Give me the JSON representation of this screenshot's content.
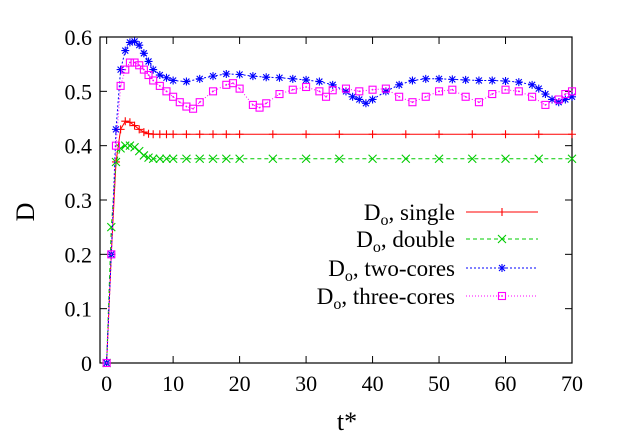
{
  "chart_data": {
    "type": "line",
    "title": "",
    "xlabel": "t*",
    "ylabel": "D",
    "xlim": [
      -1,
      70
    ],
    "ylim": [
      0,
      0.6
    ],
    "x_ticks": [
      0,
      10,
      20,
      30,
      40,
      50,
      60,
      70
    ],
    "y_ticks": [
      0,
      0.1,
      0.2,
      0.3,
      0.4,
      0.5,
      0.6
    ],
    "x_tick_labels": [
      "0",
      "10",
      "20",
      "30",
      "40",
      "50",
      "60",
      "70"
    ],
    "y_tick_labels": [
      "0",
      "0.1",
      "0.2",
      "0.3",
      "0.4",
      "0.5",
      "0.6"
    ],
    "grid": false,
    "legend_position": "center-right",
    "series": [
      {
        "name": "single",
        "legend_main": "D",
        "legend_sub": "o",
        "legend_rest": ", single",
        "color": "#ff0000",
        "marker": "plus",
        "dash": "",
        "x": [
          0,
          0.7,
          1.4,
          2.1,
          2.8,
          3.5,
          4.2,
          4.9,
          5.6,
          6.3,
          7,
          8,
          9,
          10,
          12,
          14,
          16,
          18,
          20,
          25,
          30,
          35,
          40,
          45,
          50,
          55,
          60,
          65,
          70
        ],
        "y": [
          0,
          0.2,
          0.37,
          0.43,
          0.445,
          0.443,
          0.437,
          0.43,
          0.425,
          0.422,
          0.421,
          0.421,
          0.421,
          0.421,
          0.421,
          0.421,
          0.421,
          0.421,
          0.421,
          0.421,
          0.421,
          0.421,
          0.421,
          0.421,
          0.421,
          0.421,
          0.421,
          0.421,
          0.421
        ]
      },
      {
        "name": "double",
        "legend_main": "D",
        "legend_sub": "o",
        "legend_rest": ", double",
        "color": "#00cc00",
        "marker": "x",
        "dash": "4,3",
        "x": [
          0,
          0.7,
          1.4,
          2.1,
          2.8,
          3.5,
          4.2,
          4.9,
          5.6,
          6.3,
          7,
          8,
          9,
          10,
          12,
          14,
          16,
          18,
          20,
          25,
          30,
          35,
          40,
          45,
          50,
          55,
          60,
          65,
          70
        ],
        "y": [
          0,
          0.25,
          0.37,
          0.395,
          0.4,
          0.4,
          0.397,
          0.39,
          0.382,
          0.378,
          0.376,
          0.376,
          0.376,
          0.376,
          0.376,
          0.376,
          0.376,
          0.376,
          0.376,
          0.376,
          0.376,
          0.376,
          0.376,
          0.376,
          0.376,
          0.376,
          0.376,
          0.376,
          0.376
        ]
      },
      {
        "name": "two-cores",
        "legend_main": "D",
        "legend_sub": "o",
        "legend_rest": ", two-cores",
        "color": "#0000ff",
        "marker": "star",
        "dash": "2,2",
        "x": [
          0,
          0.7,
          1.4,
          2.1,
          2.8,
          3.5,
          4.2,
          4.9,
          5.6,
          6.3,
          7,
          8,
          9,
          10,
          12,
          14,
          16,
          18,
          20,
          22,
          24,
          26,
          28,
          30,
          32,
          34,
          36,
          37,
          38,
          39,
          40,
          42,
          44,
          46,
          48,
          50,
          52,
          54,
          56,
          58,
          60,
          62,
          64,
          65,
          66,
          67,
          68,
          69,
          70
        ],
        "y": [
          0,
          0.2,
          0.43,
          0.54,
          0.575,
          0.59,
          0.592,
          0.585,
          0.57,
          0.555,
          0.54,
          0.53,
          0.525,
          0.52,
          0.518,
          0.523,
          0.528,
          0.532,
          0.531,
          0.528,
          0.526,
          0.525,
          0.523,
          0.521,
          0.518,
          0.512,
          0.5,
          0.49,
          0.485,
          0.478,
          0.485,
          0.5,
          0.512,
          0.52,
          0.523,
          0.523,
          0.522,
          0.521,
          0.52,
          0.52,
          0.519,
          0.517,
          0.512,
          0.505,
          0.495,
          0.485,
          0.48,
          0.485,
          0.49
        ]
      },
      {
        "name": "three-cores",
        "legend_main": "D",
        "legend_sub": "o",
        "legend_rest": ", three-cores",
        "color": "#ff00ff",
        "marker": "square",
        "dash": "1,2",
        "x": [
          0,
          0.7,
          1.4,
          2.1,
          2.8,
          3.5,
          4.2,
          4.9,
          5.6,
          6.3,
          7,
          8,
          9,
          10,
          11,
          12,
          13,
          14,
          16,
          18,
          19,
          20,
          22,
          23,
          24,
          26,
          28,
          30,
          32,
          33,
          34,
          36,
          38,
          40,
          42,
          44,
          46,
          48,
          50,
          52,
          54,
          56,
          58,
          60,
          62,
          64,
          66,
          68,
          69,
          70
        ],
        "y": [
          0,
          0.2,
          0.4,
          0.51,
          0.54,
          0.553,
          0.553,
          0.548,
          0.54,
          0.53,
          0.52,
          0.51,
          0.5,
          0.49,
          0.48,
          0.472,
          0.468,
          0.48,
          0.5,
          0.512,
          0.515,
          0.505,
          0.475,
          0.47,
          0.478,
          0.495,
          0.503,
          0.508,
          0.5,
          0.49,
          0.502,
          0.505,
          0.5,
          0.503,
          0.505,
          0.49,
          0.48,
          0.49,
          0.5,
          0.503,
          0.49,
          0.48,
          0.495,
          0.503,
          0.5,
          0.49,
          0.475,
          0.485,
          0.495,
          0.5
        ]
      }
    ]
  }
}
